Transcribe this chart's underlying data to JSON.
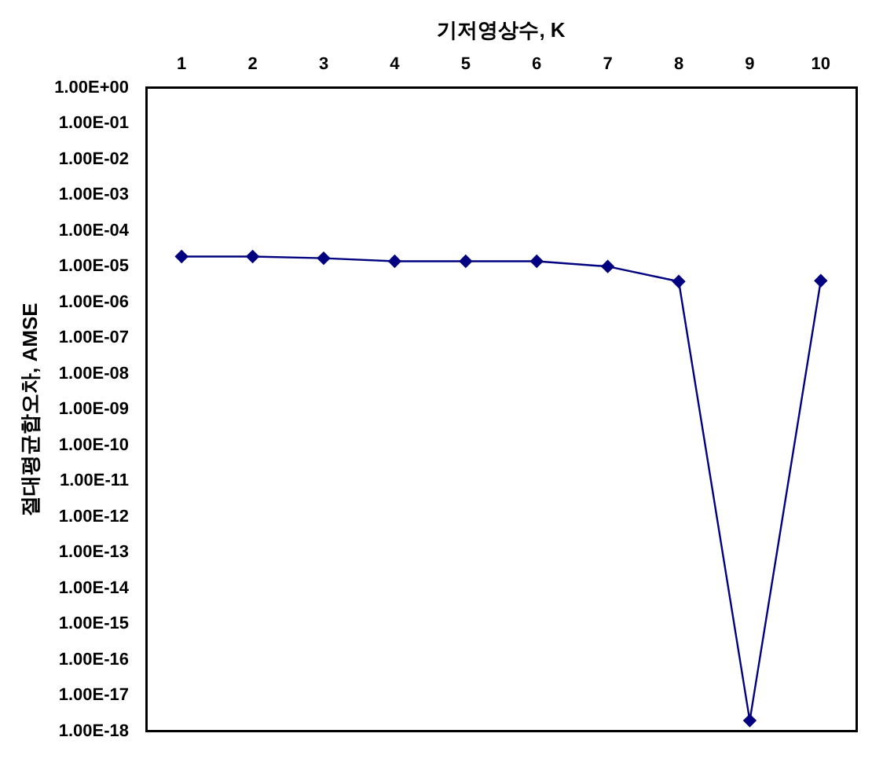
{
  "chart_data": {
    "type": "line",
    "xlabel": "기저영상수, K",
    "ylabel": "절대평균합오차, AMSE",
    "categories": [
      "1",
      "2",
      "3",
      "4",
      "5",
      "6",
      "7",
      "8",
      "9",
      "10"
    ],
    "series": [
      {
        "color": "#000080",
        "values": [
          1.9e-05,
          1.9e-05,
          1.7e-05,
          1.4e-05,
          1.4e-05,
          1.4e-05,
          1e-05,
          3.8e-06,
          2e-18,
          4e-06
        ]
      }
    ],
    "log": "y",
    "ylim": [
      1e-18,
      1
    ],
    "yticks": [
      {
        "value": 1,
        "label": "1.00E+00"
      },
      {
        "value": 0.1,
        "label": "1.00E-01"
      },
      {
        "value": 0.01,
        "label": "1.00E-02"
      },
      {
        "value": 0.001,
        "label": "1.00E-03"
      },
      {
        "value": 0.0001,
        "label": "1.00E-04"
      },
      {
        "value": 1e-05,
        "label": "1.00E-05"
      },
      {
        "value": 1e-06,
        "label": "1.00E-06"
      },
      {
        "value": 1e-07,
        "label": "1.00E-07"
      },
      {
        "value": 1e-08,
        "label": "1.00E-08"
      },
      {
        "value": 1e-09,
        "label": "1.00E-09"
      },
      {
        "value": 1e-10,
        "label": "1.00E-10"
      },
      {
        "value": 1e-11,
        "label": "1.00E-11"
      },
      {
        "value": 1e-12,
        "label": "1.00E-12"
      },
      {
        "value": 1e-13,
        "label": "1.00E-13"
      },
      {
        "value": 1e-14,
        "label": "1.00E-14"
      },
      {
        "value": 1e-15,
        "label": "1.00E-15"
      },
      {
        "value": 1e-16,
        "label": "1.00E-16"
      },
      {
        "value": 1e-17,
        "label": "1.00E-17"
      },
      {
        "value": 1e-18,
        "label": "1.00E-18"
      }
    ],
    "grid": false,
    "legend": false,
    "marker": "diamond",
    "line_style": "solid"
  }
}
